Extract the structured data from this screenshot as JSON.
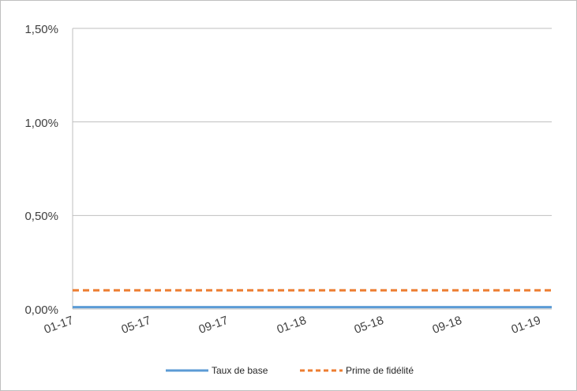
{
  "chart_data": {
    "type": "line",
    "title": "",
    "xlabel": "",
    "ylabel": "",
    "x_tick_labels": [
      "01-17",
      "05-17",
      "09-17",
      "01-18",
      "05-18",
      "09-18",
      "01-19"
    ],
    "x": [
      "2017-01",
      "2019-01"
    ],
    "y_tick_labels": [
      "0,00%",
      "0,50%",
      "1,00%",
      "1,50%"
    ],
    "ylim": [
      0,
      1.5
    ],
    "grid": true,
    "legend_position": "bottom",
    "series": [
      {
        "name": "Taux de base",
        "values": [
          0.01,
          0.01
        ],
        "color": "#5b9bd5",
        "style": "solid"
      },
      {
        "name": "Prime de fidélité",
        "values": [
          0.1,
          0.1
        ],
        "color": "#ed7d31",
        "style": "dashed"
      }
    ]
  }
}
